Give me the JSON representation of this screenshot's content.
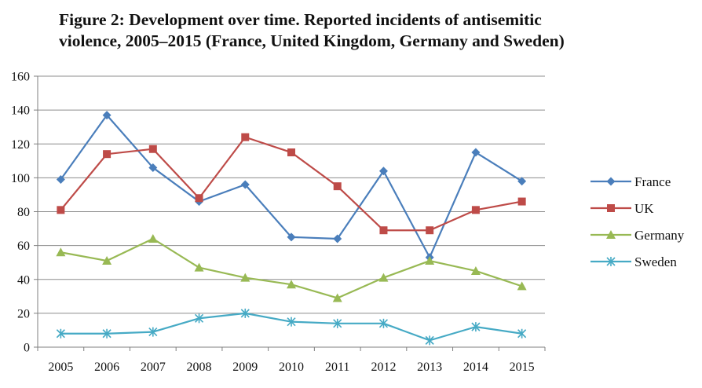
{
  "figure": {
    "title_line1": "Figure 2: Development over time. Reported incidents of  antisemitic",
    "title_line2": "violence, 2005–2015 (France, United Kingdom, Germany and Sweden)"
  },
  "chart_data": {
    "type": "line",
    "title": "Figure 2: Development over time. Reported incidents of antisemitic violence, 2005–2015 (France, United Kingdom, Germany and Sweden)",
    "xlabel": "",
    "ylabel": "",
    "categories": [
      "2005",
      "2006",
      "2007",
      "2008",
      "2009",
      "2010",
      "2011",
      "2012",
      "2013",
      "2014",
      "2015"
    ],
    "ylim": [
      0,
      160
    ],
    "yticks": [
      0,
      20,
      40,
      60,
      80,
      100,
      120,
      140,
      160
    ],
    "grid": true,
    "legend_position": "right",
    "series": [
      {
        "name": "France",
        "marker": "diamond",
        "color": "#4a7ebb",
        "values": [
          99,
          137,
          106,
          86,
          96,
          65,
          64,
          104,
          53,
          115,
          98
        ]
      },
      {
        "name": "UK",
        "marker": "square",
        "color": "#be4b48",
        "values": [
          81,
          114,
          117,
          88,
          124,
          115,
          95,
          69,
          69,
          81,
          86
        ]
      },
      {
        "name": "Germany",
        "marker": "triangle",
        "color": "#98b954",
        "values": [
          56,
          51,
          64,
          47,
          41,
          37,
          29,
          41,
          51,
          45,
          36
        ]
      },
      {
        "name": "Sweden",
        "marker": "asterisk",
        "color": "#46aac5",
        "values": [
          8,
          8,
          9,
          17,
          20,
          15,
          14,
          14,
          4,
          12,
          8
        ]
      }
    ]
  }
}
